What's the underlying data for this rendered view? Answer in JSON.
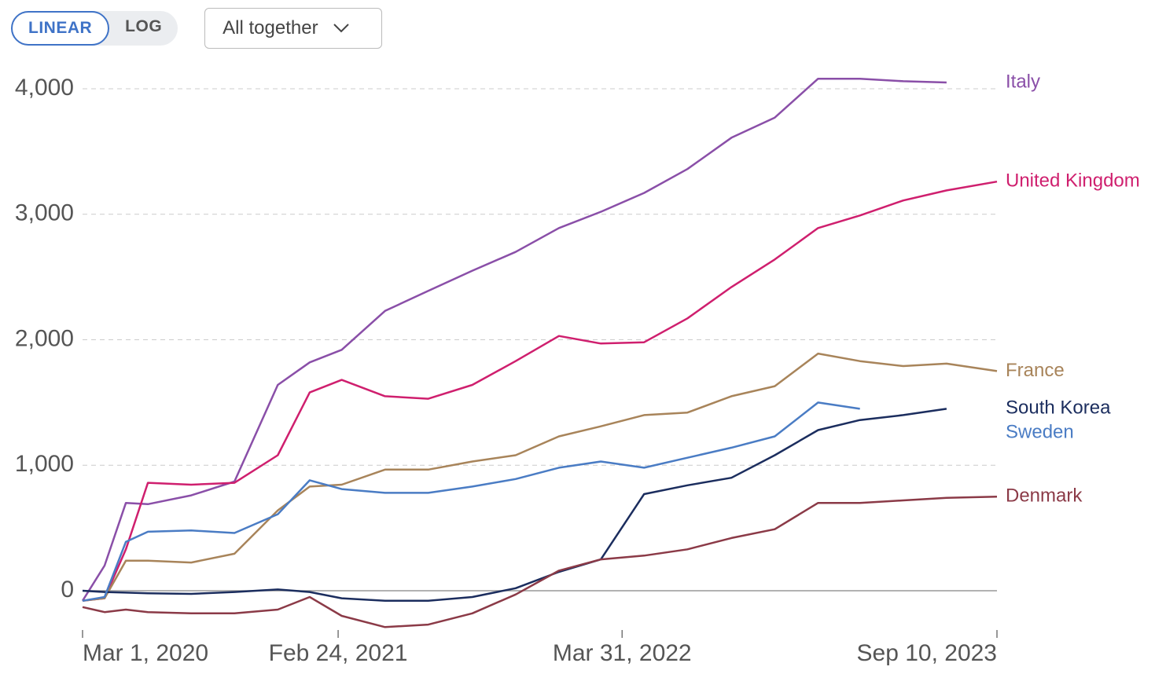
{
  "controls": {
    "linear": "LINEAR",
    "log": "LOG",
    "dropdown": "All together"
  },
  "chart_data": {
    "type": "line",
    "x": [
      "2020-03-01",
      "2020-04-01",
      "2020-05-01",
      "2020-06-01",
      "2020-08-01",
      "2020-10-01",
      "2020-12-01",
      "2021-01-15",
      "2021-03-01",
      "2021-05-01",
      "2021-07-01",
      "2021-09-01",
      "2021-11-01",
      "2022-01-01",
      "2022-03-01",
      "2022-05-01",
      "2022-07-01",
      "2022-09-01",
      "2022-11-01",
      "2023-01-01",
      "2023-03-01",
      "2023-05-01",
      "2023-07-01",
      "2023-09-10"
    ],
    "xlim": [
      "2020-03-01",
      "2023-09-10"
    ],
    "xticks": [
      {
        "value": "2020-03-01",
        "label": "Mar 1, 2020"
      },
      {
        "value": "2021-02-24",
        "label": "Feb 24, 2021"
      },
      {
        "value": "2022-03-31",
        "label": "Mar 31, 2022"
      },
      {
        "value": "2023-09-10",
        "label": "Sep 10, 2023"
      }
    ],
    "ylim": [
      -300,
      4200
    ],
    "yticks": [
      0,
      {
        "value": 1000,
        "label": "1,000"
      },
      {
        "value": 2000,
        "label": "2,000"
      },
      {
        "value": 3000,
        "label": "3,000"
      },
      {
        "value": 4000,
        "label": "4,000"
      }
    ],
    "grid": true,
    "series": [
      {
        "name": "Italy",
        "color": "#8a4fa8",
        "values": [
          -80,
          200,
          700,
          690,
          760,
          870,
          1640,
          1820,
          1920,
          2230,
          2390,
          2550,
          2700,
          2890,
          3020,
          3170,
          3360,
          3610,
          3770,
          4080,
          4080,
          4060,
          4050,
          null
        ]
      },
      {
        "name": "United Kingdom",
        "color": "#cf1f6e",
        "values": [
          -80,
          -60,
          330,
          860,
          845,
          860,
          1080,
          1580,
          1680,
          1550,
          1530,
          1640,
          1830,
          2030,
          1970,
          1980,
          2170,
          2420,
          2640,
          2890,
          2990,
          3110,
          3190,
          3260
        ]
      },
      {
        "name": "France",
        "color": "#a8845a",
        "values": [
          -80,
          -60,
          240,
          240,
          225,
          295,
          640,
          830,
          845,
          965,
          965,
          1030,
          1080,
          1230,
          1310,
          1400,
          1420,
          1550,
          1630,
          1890,
          1830,
          1790,
          1810,
          1750
        ]
      },
      {
        "name": "South Korea",
        "color": "#1b2d5e",
        "values": [
          0,
          -10,
          -15,
          -20,
          -25,
          -10,
          10,
          -10,
          -60,
          -80,
          -80,
          -50,
          20,
          150,
          250,
          770,
          840,
          900,
          1080,
          1280,
          1360,
          1400,
          1450,
          null
        ]
      },
      {
        "name": "Sweden",
        "color": "#4a7cc4",
        "values": [
          -80,
          -50,
          390,
          470,
          480,
          460,
          610,
          880,
          810,
          780,
          780,
          830,
          890,
          980,
          1030,
          980,
          1060,
          1140,
          1230,
          1500,
          1450,
          null,
          null,
          null
        ]
      },
      {
        "name": "Denmark",
        "color": "#8b3a47",
        "values": [
          -130,
          -170,
          -150,
          -170,
          -180,
          -180,
          -150,
          -50,
          -200,
          -290,
          -270,
          -180,
          -30,
          160,
          250,
          280,
          330,
          420,
          490,
          700,
          700,
          720,
          740,
          750
        ]
      }
    ]
  }
}
